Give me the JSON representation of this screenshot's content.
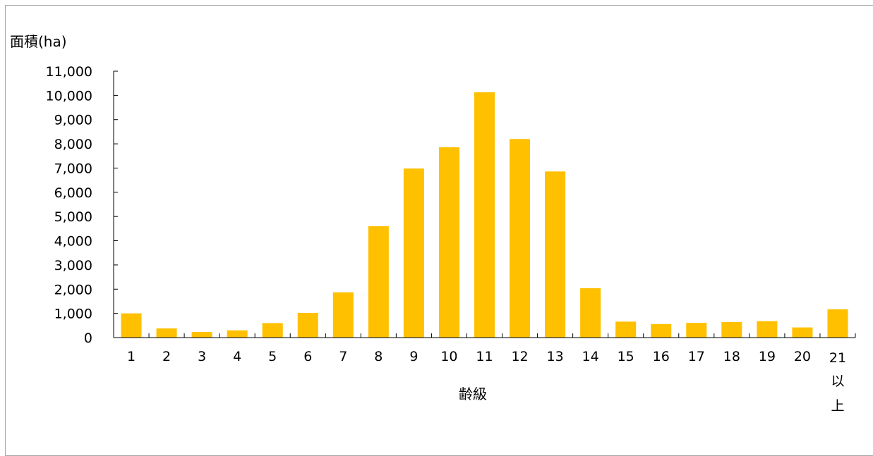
{
  "chart_data": {
    "type": "bar",
    "ylabel": "面積(ha)",
    "xlabel": "齢級",
    "categories": [
      "1",
      "2",
      "3",
      "4",
      "5",
      "6",
      "7",
      "8",
      "9",
      "10",
      "11",
      "12",
      "13",
      "14",
      "15",
      "16",
      "17",
      "18",
      "19",
      "20",
      "21"
    ],
    "last_category_suffix": [
      "以",
      "上"
    ],
    "values": [
      1000,
      380,
      230,
      300,
      600,
      1020,
      1870,
      4600,
      6980,
      7860,
      10130,
      8200,
      6860,
      2040,
      660,
      560,
      610,
      640,
      680,
      420,
      1170
    ],
    "ylim": [
      0,
      11000
    ],
    "yticks": [
      "0",
      "1,000",
      "2,000",
      "3,000",
      "4,000",
      "5,000",
      "6,000",
      "7,000",
      "8,000",
      "9,000",
      "10,000",
      "11,000"
    ],
    "ytick_values": [
      0,
      1000,
      2000,
      3000,
      4000,
      5000,
      6000,
      7000,
      8000,
      9000,
      10000,
      11000
    ],
    "bar_color": "#ffc000",
    "grid": false,
    "legend": "none"
  }
}
